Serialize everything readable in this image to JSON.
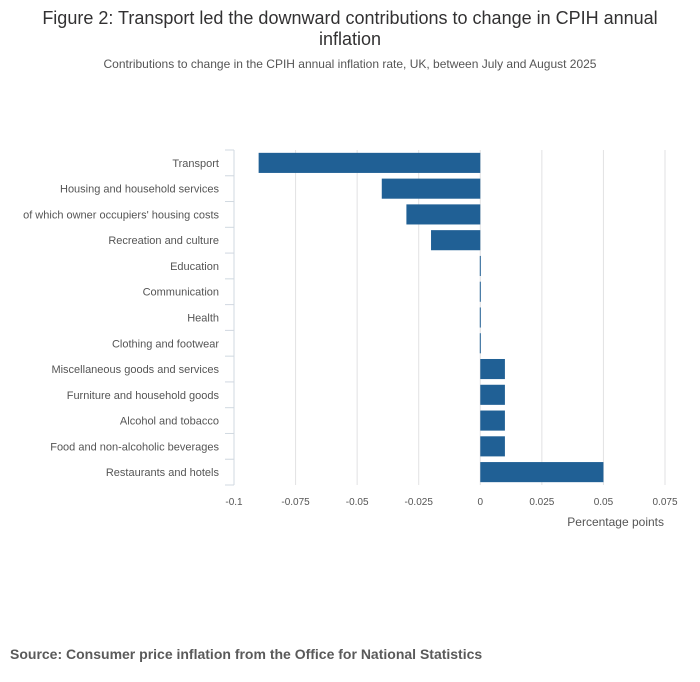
{
  "chart_data": {
    "type": "bar",
    "orientation": "horizontal",
    "title": "Figure 2: Transport led the downward contributions to change in CPIH annual inflation",
    "subtitle": "Contributions to change in the CPIH annual inflation rate, UK, between July and August 2025",
    "xlabel": "Percentage points",
    "ylabel": "",
    "xlim": [
      -0.1,
      0.075
    ],
    "xticks": [
      -0.1,
      -0.075,
      -0.05,
      -0.025,
      0,
      0.025,
      0.05,
      0.075
    ],
    "xtick_labels": [
      "-0.1",
      "-0.075",
      "-0.05",
      "-0.025",
      "0",
      "0.025",
      "0.05",
      "0.075"
    ],
    "grid": true,
    "bar_color": "#206095",
    "categories": [
      "Transport",
      "Housing and household services",
      "of which owner occupiers' housing costs",
      "Recreation and culture",
      "Education",
      "Communication",
      "Health",
      "Clothing and footwear",
      "Miscellaneous goods and services",
      "Furniture and household goods",
      "Alcohol and tobacco",
      "Food and non-alcoholic beverages",
      "Restaurants and hotels"
    ],
    "values": [
      -0.09,
      -0.04,
      -0.03,
      -0.02,
      0,
      0,
      0,
      0,
      0.01,
      0.01,
      0.01,
      0.01,
      0.05
    ]
  },
  "source": "Source: Consumer price inflation from the Office for National Statistics"
}
